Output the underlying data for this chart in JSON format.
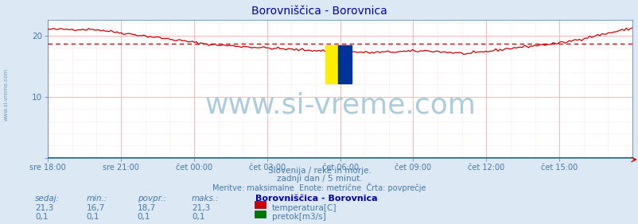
{
  "title": "Borovniščica - Borovnica",
  "bg_color": "#dce9f5",
  "plot_bg_color": "#ffffff",
  "grid_color_major": "#ffaaaa",
  "grid_color_minor": "#ffdddd",
  "x_tick_labels": [
    "sre 18:00",
    "sre 21:00",
    "čet 00:00",
    "čet 03:00",
    "čet 06:00",
    "čet 09:00",
    "čet 12:00",
    "čet 15:00"
  ],
  "x_tick_positions": [
    0,
    0.125,
    0.25,
    0.375,
    0.5,
    0.625,
    0.75,
    0.875
  ],
  "y_ticks": [
    0,
    10,
    20
  ],
  "y_lim": [
    0,
    22.5
  ],
  "x_lim": [
    0,
    1
  ],
  "temp_color": "#cc0000",
  "flow_color": "#007700",
  "avg_line_color": "#cc0000",
  "avg_value": 18.7,
  "temp_min": 16.7,
  "temp_max": 21.3,
  "temp_current": 21.3,
  "temp_avg": 18.7,
  "flow_current": 0.1,
  "flow_min": 0.1,
  "flow_avg": 0.1,
  "flow_max": 0.1,
  "watermark_text": "www.si-vreme.com",
  "legend_title": "Borovniščica - Borovnica",
  "col_headers": [
    "sedaj:",
    "min.:",
    "povpr.:",
    "maks.:"
  ],
  "temp_values": [
    "21,3",
    "16,7",
    "18,7",
    "21,3"
  ],
  "flow_values": [
    "0,1",
    "0,1",
    "0,1",
    "0,1"
  ],
  "footer1": "Slovenija / reke in morje.",
  "footer2": "zadnji dan / 5 minut.",
  "footer3": "Meritve: maksimalne  Enote: metrične  Črta: povprečje",
  "legend_temp": "temperatura[C]",
  "legend_flow": "pretok[m3/s]",
  "axis_label_color": "#4477aa",
  "title_color": "#0000aa",
  "watermark_color": "#aaccdd",
  "side_text": "www.si-vreme.com"
}
